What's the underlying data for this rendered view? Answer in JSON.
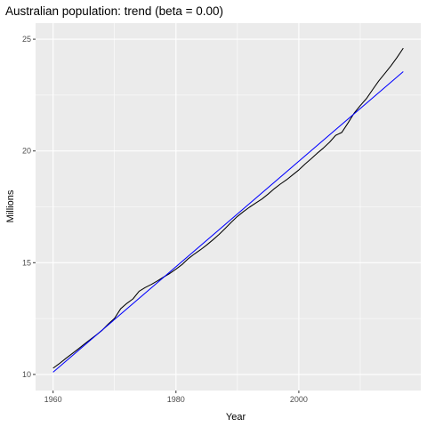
{
  "chart_data": {
    "type": "line",
    "title": "Australian population: trend (beta = 0.00)",
    "xlabel": "Year",
    "ylabel": "Millions",
    "xlim": [
      1957.15,
      2019.85
    ],
    "ylim": [
      9.28,
      25.72
    ],
    "x_ticks": [
      1960,
      1980,
      2000
    ],
    "x_minor_ticks": [
      1970,
      1990,
      2010
    ],
    "y_ticks": [
      10,
      15,
      20,
      25
    ],
    "y_minor_ticks": [
      12.5,
      17.5,
      22.5
    ],
    "grid": true,
    "panel_background": "#ebebeb",
    "grid_color": "#ffffff",
    "series": [
      {
        "color": "#000000",
        "x": [
          1960,
          1961,
          1962,
          1963,
          1964,
          1965,
          1966,
          1967,
          1968,
          1969,
          1970,
          1971,
          1972,
          1973,
          1974,
          1975,
          1976,
          1977,
          1978,
          1979,
          1980,
          1981,
          1982,
          1983,
          1984,
          1985,
          1986,
          1987,
          1988,
          1989,
          1990,
          1991,
          1992,
          1993,
          1994,
          1995,
          1996,
          1997,
          1998,
          1999,
          2000,
          2001,
          2002,
          2003,
          2004,
          2005,
          2006,
          2007,
          2008,
          2009,
          2010,
          2011,
          2012,
          2013,
          2014,
          2015,
          2016,
          2017
        ],
        "values": [
          10.28,
          10.48,
          10.7,
          10.91,
          11.12,
          11.34,
          11.55,
          11.76,
          11.98,
          12.26,
          12.51,
          12.94,
          13.18,
          13.38,
          13.72,
          13.89,
          14.03,
          14.19,
          14.36,
          14.52,
          14.71,
          14.92,
          15.18,
          15.39,
          15.58,
          15.79,
          16.02,
          16.26,
          16.53,
          16.81,
          17.07,
          17.29,
          17.49,
          17.67,
          17.85,
          18.07,
          18.31,
          18.52,
          18.71,
          18.93,
          19.15,
          19.41,
          19.65,
          19.9,
          20.13,
          20.39,
          20.7,
          20.83,
          21.25,
          21.69,
          22.03,
          22.34,
          22.74,
          23.13,
          23.47,
          23.81,
          24.19,
          24.6
        ]
      },
      {
        "color": "#0000ff",
        "x": [
          1960,
          2017
        ],
        "values": [
          10.1,
          23.55
        ]
      }
    ]
  }
}
